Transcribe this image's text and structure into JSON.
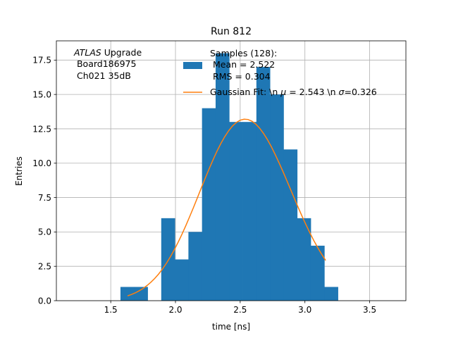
{
  "chart_data": {
    "type": "bar",
    "title": "Run 812",
    "xlabel": "time [ns]",
    "ylabel": "Entries",
    "xlim": [
      1.08,
      3.78
    ],
    "ylim": [
      0,
      18.9
    ],
    "xticks": [
      1.5,
      2.0,
      2.5,
      3.0,
      3.5
    ],
    "xtick_labels": [
      "1.5",
      "2.0",
      "2.5",
      "3.0",
      "3.5"
    ],
    "yticks": [
      0.0,
      2.5,
      5.0,
      7.5,
      10.0,
      12.5,
      15.0,
      17.5
    ],
    "ytick_labels": [
      "0.0",
      "2.5",
      "5.0",
      "7.5",
      "10.0",
      "12.5",
      "15.0",
      "17.5"
    ],
    "grid": true,
    "legend_placement": "top-center",
    "annotation": {
      "italic": "ATLAS",
      "line1_rest": " Upgrade",
      "line2": " Board186975",
      "line3": " Ch021 35dB"
    },
    "histogram": {
      "name": "Samples (128):",
      "legend_lines": [
        "Samples (128):",
        " Mean = 2.522",
        " RMS = 0.304"
      ],
      "color": "#1f77b4",
      "bin_edges": [
        1.575,
        1.68,
        1.785,
        1.89,
        1.995,
        2.1,
        2.205,
        2.31,
        2.415,
        2.52,
        2.625,
        2.73,
        2.835,
        2.94,
        3.045,
        3.15,
        3.255
      ],
      "counts": [
        1,
        1,
        0,
        6,
        3,
        5,
        14,
        18,
        13,
        13,
        17,
        15,
        11,
        6,
        4,
        1
      ]
    },
    "fit": {
      "name_prefix": "Gaussian Fit: \\n ",
      "mu_symbol": "μ",
      "mu_text": " = 2.543 \\n ",
      "sigma_symbol": "σ",
      "sigma_text": "=0.326",
      "color": "#ff7f0e",
      "x": [
        1.63,
        1.66,
        1.69,
        1.72,
        1.75,
        1.78,
        1.81,
        1.84,
        1.87,
        1.9,
        1.93,
        1.96,
        1.99,
        2.02,
        2.05,
        2.08,
        2.11,
        2.14,
        2.17,
        2.2,
        2.23,
        2.26,
        2.29,
        2.32,
        2.35,
        2.38,
        2.41,
        2.44,
        2.47,
        2.5,
        2.53,
        2.56,
        2.59,
        2.62,
        2.65,
        2.68,
        2.71,
        2.74,
        2.77,
        2.8,
        2.83,
        2.86,
        2.89,
        2.92,
        2.95,
        2.98,
        3.01,
        3.04,
        3.07,
        3.1,
        3.13,
        3.16
      ],
      "y": [
        0.35,
        0.45,
        0.57,
        0.72,
        0.89,
        1.1,
        1.34,
        1.62,
        1.94,
        2.31,
        2.72,
        3.18,
        3.69,
        4.24,
        4.83,
        5.46,
        6.12,
        6.8,
        7.5,
        8.21,
        8.91,
        9.59,
        10.24,
        10.86,
        11.42,
        11.92,
        12.35,
        12.7,
        12.96,
        13.13,
        13.2,
        13.18,
        13.06,
        12.85,
        12.55,
        12.17,
        11.72,
        11.21,
        10.64,
        10.03,
        9.4,
        8.74,
        8.07,
        7.4,
        6.74,
        6.1,
        5.49,
        4.9,
        4.35,
        3.84,
        3.37,
        2.93
      ]
    }
  }
}
